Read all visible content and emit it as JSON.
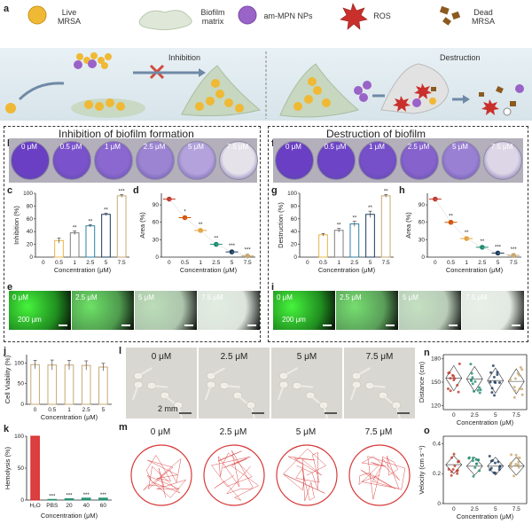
{
  "legend": {
    "live": "Live\nMRSA",
    "biofilm": "Biofilm\nmatrix",
    "nps": "am-MPN NPs",
    "ros": "ROS",
    "dead": "Dead\nMRSA"
  },
  "panel_letters": [
    "a",
    "b",
    "c",
    "d",
    "e",
    "f",
    "g",
    "h",
    "i",
    "j",
    "k",
    "l",
    "m",
    "n",
    "o"
  ],
  "scheme": {
    "inhibition": "Inhibition",
    "destruction": "Destruction"
  },
  "titles": {
    "left": "Inhibition of biofilm formation",
    "right": "Destruction of biofilm"
  },
  "wells": {
    "labels": [
      "0 μM",
      "0.5 μM",
      "1 μM",
      "2.5 μM",
      "5 μM",
      "7.5 μM"
    ],
    "left_colors": [
      "#6a3fc4",
      "#7a52cc",
      "#8a68cf",
      "#9c84d3",
      "#b3a2dc",
      "#e6e2ea"
    ],
    "right_colors": [
      "#6a3fc4",
      "#6e44c6",
      "#7650c9",
      "#8662cd",
      "#9a80d3",
      "#dcd6e6"
    ]
  },
  "fluo": {
    "labels": [
      "0 μM",
      "2.5 μM",
      "5 μM",
      "7.5 μM"
    ],
    "scale": "200 μm"
  },
  "axes": {
    "conc_label": "Concentration (μM)",
    "inhibition": "Inhibition (%)",
    "area": "Area (%)",
    "destruction": "Destruction (%)",
    "viability": "Cell Viability (%)",
    "hemolysis": "Hemolysis (%)",
    "distance": "Distance (cm)",
    "velocity": "Velocity (cm s⁻¹)"
  },
  "chart_data": [
    {
      "panel": "c",
      "type": "bar",
      "categories": [
        "0.5",
        "1",
        "2.5",
        "5",
        "7.5"
      ],
      "values": [
        26,
        38,
        49,
        67,
        96
      ],
      "errors": [
        4,
        3,
        2,
        2,
        2
      ],
      "significance": [
        "",
        "**",
        "**",
        "**",
        "***"
      ],
      "xlabel": "Concentration (μM)",
      "ylabel": "Inhibition (%)",
      "ylim": [
        0,
        100
      ],
      "yticks": [
        0,
        20,
        40,
        60,
        80,
        100
      ],
      "colors": [
        "#e8b44a",
        "#7e7e7e",
        "#2e7fa6",
        "#1b3b5e",
        "#c7a873"
      ]
    },
    {
      "panel": "d",
      "type": "scatter",
      "categories": [
        "0",
        "0.5",
        "1",
        "2.5",
        "5",
        "7.5"
      ],
      "values": [
        100,
        68,
        46,
        22,
        9,
        2
      ],
      "significance": [
        "",
        "*",
        "**",
        "**",
        "***",
        "***"
      ],
      "xlabel": "Concentration (μM)",
      "ylabel": "Area (%)",
      "ylim": [
        0,
        110
      ],
      "yticks": [
        0,
        30,
        60,
        90
      ],
      "colors": [
        "#c0392b",
        "#d35400",
        "#e6a23c",
        "#1e8c6e",
        "#1b3b5e",
        "#c7a873"
      ]
    },
    {
      "panel": "g",
      "type": "bar",
      "categories": [
        "0.5",
        "1",
        "2.5",
        "5",
        "7.5"
      ],
      "values": [
        35,
        42,
        52,
        67,
        96
      ],
      "errors": [
        2,
        3,
        4,
        5,
        2
      ],
      "significance": [
        "",
        "**",
        "**",
        "**",
        "**"
      ],
      "xlabel": "Concentration (μM)",
      "ylabel": "Destruction (%)",
      "ylim": [
        0,
        100
      ],
      "yticks": [
        0,
        20,
        40,
        60,
        80,
        100
      ],
      "colors": [
        "#e8b44a",
        "#7e7e7e",
        "#2e7fa6",
        "#1b3b5e",
        "#c7a873"
      ]
    },
    {
      "panel": "h",
      "type": "scatter",
      "categories": [
        "0",
        "0.5",
        "1",
        "2.5",
        "5",
        "7.5"
      ],
      "values": [
        100,
        60,
        32,
        17,
        7,
        3
      ],
      "significance": [
        "",
        "**",
        "**",
        "**",
        "***",
        "***"
      ],
      "xlabel": "Concentration (μM)",
      "ylabel": "Area (%)",
      "ylim": [
        0,
        110
      ],
      "yticks": [
        0,
        30,
        60,
        90
      ],
      "colors": [
        "#c0392b",
        "#d35400",
        "#e6a23c",
        "#1e8c6e",
        "#1b3b5e",
        "#c7a873"
      ]
    },
    {
      "panel": "j",
      "type": "bar",
      "categories": [
        "0",
        "0.5",
        "1",
        "2.5",
        "5"
      ],
      "values": [
        96,
        95,
        95,
        94,
        90
      ],
      "errors": [
        10,
        12,
        11,
        11,
        9
      ],
      "xlabel": "Concentration (μM)",
      "ylabel": "Cell Viability (%)",
      "ylim": [
        0,
        120
      ],
      "yticks": [
        0,
        50,
        100
      ],
      "colors": [
        "#c7a873",
        "#c7a873",
        "#c7a873",
        "#c7a873",
        "#c7a873"
      ]
    },
    {
      "panel": "k",
      "type": "bar",
      "categories": [
        "H₂O",
        "PBS",
        "20",
        "40",
        "60"
      ],
      "values": [
        100,
        1,
        2,
        3,
        3
      ],
      "significance": [
        "",
        "***",
        "***",
        "***",
        "***"
      ],
      "xlabel": "Concentration (μM)",
      "ylabel": "Hemolysis (%)",
      "ylim": [
        0,
        100
      ],
      "yticks": [
        0,
        50,
        100
      ],
      "colors": [
        "#d82a2a",
        "#1e8c6e",
        "#1e8c6e",
        "#1e8c6e",
        "#1e8c6e"
      ]
    },
    {
      "panel": "n",
      "type": "scatter",
      "categories": [
        "0",
        "2.5",
        "5",
        "7.5"
      ],
      "means": [
        155,
        154,
        152,
        151
      ],
      "xlabel": "Concentration (μM)",
      "ylabel": "Distance (cm)",
      "ylim": [
        115,
        185
      ],
      "yticks": [
        120,
        150,
        180
      ],
      "colors": [
        "#c0392b",
        "#1e8c6e",
        "#1b3b5e",
        "#c7a873"
      ]
    },
    {
      "panel": "o",
      "type": "scatter",
      "categories": [
        "0",
        "2.5",
        "5",
        "7.5"
      ],
      "means": [
        0.26,
        0.25,
        0.25,
        0.25
      ],
      "xlabel": "Concentration (μM)",
      "ylabel": "Velocity (cm s⁻¹)",
      "ylim": [
        0.0,
        0.45
      ],
      "yticks": [
        0.0,
        0.2,
        0.4
      ],
      "colors": [
        "#c0392b",
        "#1e8c6e",
        "#1b3b5e",
        "#c7a873"
      ]
    }
  ],
  "zebrafish": {
    "labels": [
      "0 μM",
      "2.5 μM",
      "5 μM",
      "7.5 μM"
    ],
    "scale": "2 mm"
  },
  "tracks": {
    "labels": [
      "0 μM",
      "2.5 μM",
      "5 μM",
      "7.5 μM"
    ]
  }
}
